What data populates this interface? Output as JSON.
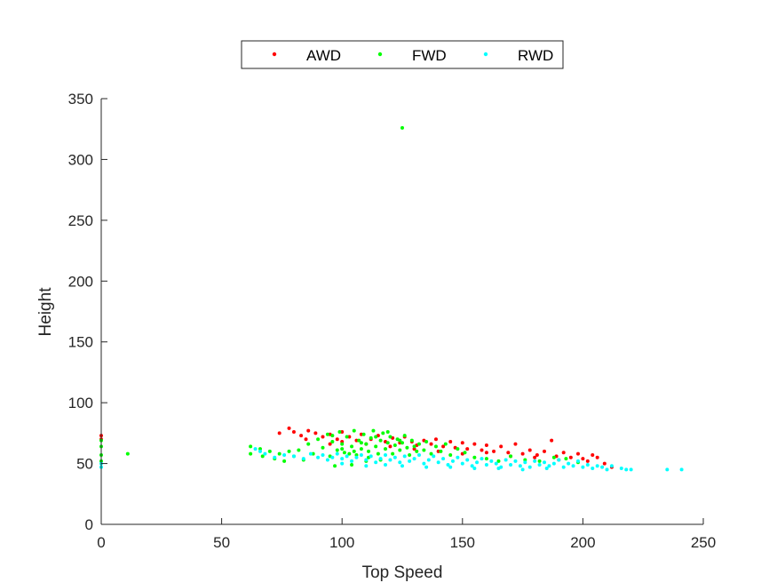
{
  "chart_data": {
    "type": "scatter",
    "title": "",
    "xlabel": "Top Speed",
    "ylabel": "Height",
    "xlim": [
      0,
      250
    ],
    "ylim": [
      0,
      350
    ],
    "xticks": [
      "0",
      "50",
      "100",
      "150",
      "200",
      "250"
    ],
    "yticks": [
      "0",
      "50",
      "100",
      "150",
      "200",
      "250",
      "300",
      "350"
    ],
    "grid": false,
    "legend_position": "top-center, horizontal",
    "series": [
      {
        "name": "AWD",
        "color": "#ff0000",
        "points": [
          [
            0,
            73
          ],
          [
            0,
            70
          ],
          [
            74,
            75
          ],
          [
            78,
            79
          ],
          [
            80,
            76
          ],
          [
            83,
            73
          ],
          [
            86,
            77
          ],
          [
            89,
            75
          ],
          [
            92,
            72
          ],
          [
            95,
            74
          ],
          [
            98,
            70
          ],
          [
            100,
            76
          ],
          [
            103,
            72
          ],
          [
            106,
            69
          ],
          [
            108,
            74
          ],
          [
            112,
            70
          ],
          [
            115,
            73
          ],
          [
            118,
            68
          ],
          [
            121,
            71
          ],
          [
            124,
            67
          ],
          [
            126,
            72
          ],
          [
            129,
            68
          ],
          [
            131,
            65
          ],
          [
            134,
            69
          ],
          [
            137,
            66
          ],
          [
            139,
            70
          ],
          [
            142,
            64
          ],
          [
            145,
            68
          ],
          [
            147,
            63
          ],
          [
            150,
            67
          ],
          [
            152,
            62
          ],
          [
            155,
            66
          ],
          [
            158,
            61
          ],
          [
            160,
            65
          ],
          [
            163,
            60
          ],
          [
            166,
            64
          ],
          [
            169,
            59
          ],
          [
            172,
            66
          ],
          [
            175,
            58
          ],
          [
            178,
            61
          ],
          [
            181,
            57
          ],
          [
            184,
            60
          ],
          [
            187,
            69
          ],
          [
            189,
            56
          ],
          [
            192,
            59
          ],
          [
            195,
            55
          ],
          [
            198,
            58
          ],
          [
            200,
            54
          ],
          [
            202,
            52
          ],
          [
            204,
            57
          ],
          [
            206,
            55
          ],
          [
            209,
            50
          ],
          [
            212,
            47
          ],
          [
            120,
            64
          ],
          [
            130,
            62
          ],
          [
            140,
            60
          ],
          [
            150,
            58
          ],
          [
            160,
            59
          ],
          [
            170,
            56
          ],
          [
            180,
            55
          ],
          [
            190,
            53
          ],
          [
            110,
            66
          ],
          [
            100,
            68
          ],
          [
            95,
            66
          ],
          [
            85,
            70
          ]
        ]
      },
      {
        "name": "FWD",
        "color": "#00ff00",
        "points": [
          [
            125,
            326
          ],
          [
            11,
            58
          ],
          [
            0,
            69
          ],
          [
            0,
            64
          ],
          [
            0,
            57
          ],
          [
            0,
            52
          ],
          [
            62,
            64
          ],
          [
            62,
            58
          ],
          [
            66,
            62
          ],
          [
            67,
            56
          ],
          [
            70,
            60
          ],
          [
            72,
            54
          ],
          [
            74,
            58
          ],
          [
            76,
            52
          ],
          [
            78,
            60
          ],
          [
            80,
            56
          ],
          [
            82,
            61
          ],
          [
            84,
            53
          ],
          [
            86,
            66
          ],
          [
            88,
            58
          ],
          [
            90,
            70
          ],
          [
            92,
            63
          ],
          [
            94,
            74
          ],
          [
            95,
            56
          ],
          [
            96,
            68
          ],
          [
            98,
            61
          ],
          [
            99,
            76
          ],
          [
            100,
            66
          ],
          [
            101,
            59
          ],
          [
            102,
            72
          ],
          [
            104,
            64
          ],
          [
            105,
            77
          ],
          [
            106,
            57
          ],
          [
            107,
            69
          ],
          [
            108,
            62
          ],
          [
            109,
            74
          ],
          [
            110,
            66
          ],
          [
            111,
            60
          ],
          [
            112,
            71
          ],
          [
            113,
            77
          ],
          [
            114,
            64
          ],
          [
            115,
            58
          ],
          [
            116,
            69
          ],
          [
            117,
            75
          ],
          [
            118,
            62
          ],
          [
            119,
            67
          ],
          [
            120,
            72
          ],
          [
            121,
            58
          ],
          [
            122,
            65
          ],
          [
            123,
            70
          ],
          [
            124,
            61
          ],
          [
            125,
            67
          ],
          [
            126,
            73
          ],
          [
            127,
            63
          ],
          [
            128,
            57
          ],
          [
            129,
            69
          ],
          [
            130,
            64
          ],
          [
            131,
            60
          ],
          [
            132,
            66
          ],
          [
            134,
            61
          ],
          [
            135,
            68
          ],
          [
            137,
            58
          ],
          [
            139,
            64
          ],
          [
            141,
            60
          ],
          [
            143,
            66
          ],
          [
            145,
            57
          ],
          [
            148,
            62
          ],
          [
            151,
            59
          ],
          [
            155,
            55
          ],
          [
            160,
            54
          ],
          [
            165,
            52
          ],
          [
            170,
            56
          ],
          [
            176,
            53
          ],
          [
            182,
            52
          ],
          [
            188,
            55
          ],
          [
            193,
            54
          ],
          [
            198,
            51
          ],
          [
            97,
            48
          ],
          [
            104,
            49
          ],
          [
            110,
            52
          ],
          [
            116,
            53
          ],
          [
            103,
            58
          ],
          [
            108,
            67
          ],
          [
            114,
            72
          ],
          [
            119,
            76
          ],
          [
            124,
            69
          ],
          [
            100,
            62
          ],
          [
            96,
            73
          ],
          [
            105,
            60
          ],
          [
            111,
            55
          ]
        ]
      },
      {
        "name": "RWD",
        "color": "#00ffff",
        "points": [
          [
            0,
            50
          ],
          [
            0,
            47
          ],
          [
            64,
            62
          ],
          [
            66,
            60
          ],
          [
            68,
            58
          ],
          [
            72,
            55
          ],
          [
            76,
            57
          ],
          [
            80,
            56
          ],
          [
            84,
            54
          ],
          [
            87,
            58
          ],
          [
            90,
            55
          ],
          [
            92,
            57
          ],
          [
            94,
            53
          ],
          [
            96,
            55
          ],
          [
            98,
            58
          ],
          [
            100,
            54
          ],
          [
            102,
            56
          ],
          [
            104,
            52
          ],
          [
            106,
            55
          ],
          [
            108,
            57
          ],
          [
            110,
            53
          ],
          [
            112,
            56
          ],
          [
            114,
            51
          ],
          [
            116,
            54
          ],
          [
            118,
            57
          ],
          [
            120,
            53
          ],
          [
            122,
            55
          ],
          [
            124,
            51
          ],
          [
            126,
            56
          ],
          [
            128,
            52
          ],
          [
            130,
            54
          ],
          [
            132,
            57
          ],
          [
            134,
            50
          ],
          [
            136,
            53
          ],
          [
            138,
            56
          ],
          [
            140,
            51
          ],
          [
            142,
            54
          ],
          [
            144,
            49
          ],
          [
            146,
            52
          ],
          [
            148,
            55
          ],
          [
            150,
            50
          ],
          [
            152,
            53
          ],
          [
            154,
            48
          ],
          [
            156,
            51
          ],
          [
            158,
            54
          ],
          [
            160,
            49
          ],
          [
            162,
            52
          ],
          [
            164,
            50
          ],
          [
            166,
            47
          ],
          [
            168,
            53
          ],
          [
            170,
            49
          ],
          [
            172,
            52
          ],
          [
            174,
            48
          ],
          [
            176,
            51
          ],
          [
            178,
            47
          ],
          [
            180,
            52
          ],
          [
            182,
            49
          ],
          [
            184,
            51
          ],
          [
            186,
            48
          ],
          [
            188,
            50
          ],
          [
            190,
            53
          ],
          [
            192,
            47
          ],
          [
            194,
            50
          ],
          [
            196,
            48
          ],
          [
            198,
            52
          ],
          [
            200,
            47
          ],
          [
            202,
            49
          ],
          [
            204,
            46
          ],
          [
            206,
            48
          ],
          [
            208,
            47
          ],
          [
            210,
            45
          ],
          [
            212,
            48
          ],
          [
            216,
            46
          ],
          [
            218,
            45
          ],
          [
            220,
            45
          ],
          [
            235,
            45
          ],
          [
            241,
            45
          ],
          [
            125,
            48
          ],
          [
            135,
            47
          ],
          [
            145,
            47
          ],
          [
            155,
            46
          ],
          [
            165,
            46
          ],
          [
            175,
            45
          ],
          [
            185,
            46
          ],
          [
            110,
            48
          ],
          [
            100,
            50
          ],
          [
            118,
            49
          ]
        ]
      }
    ]
  }
}
